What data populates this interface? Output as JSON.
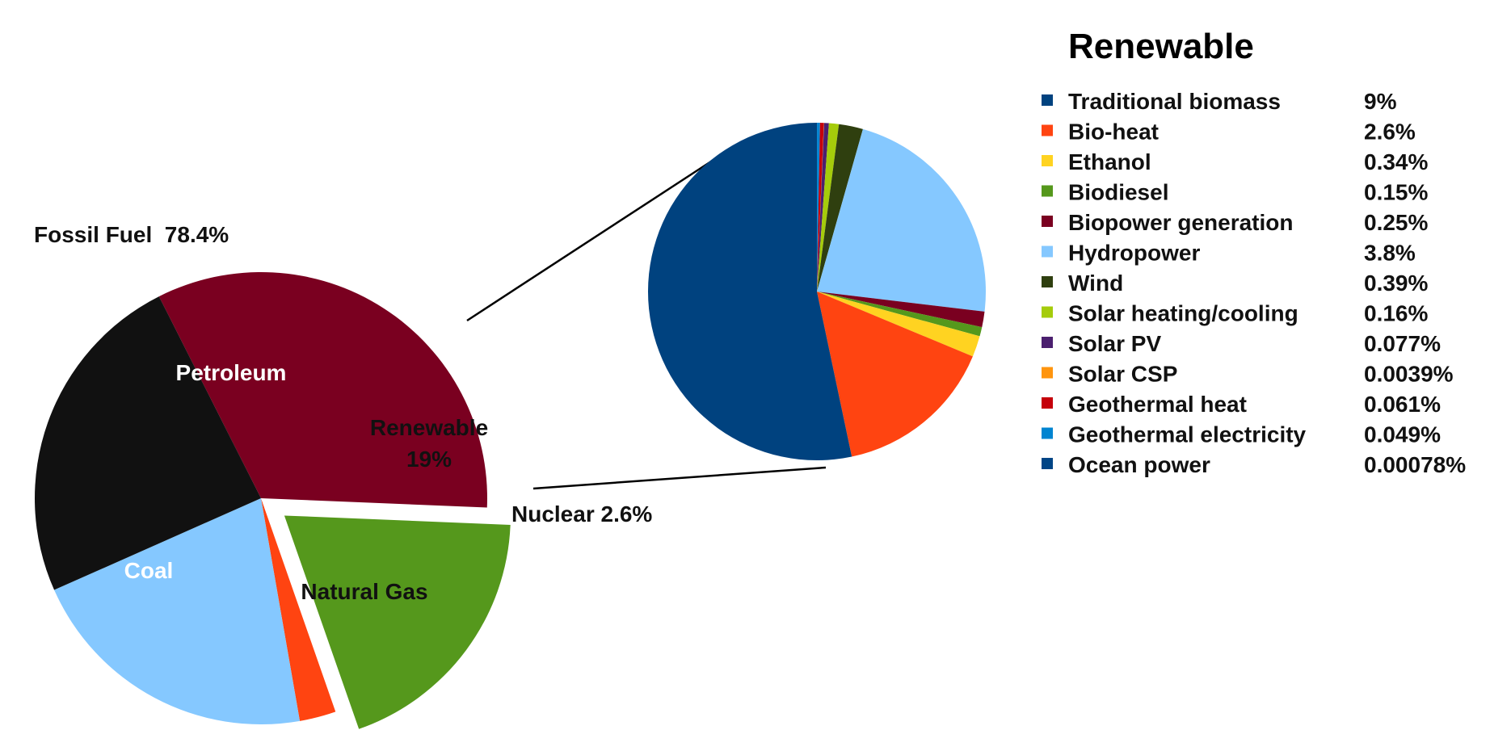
{
  "chart_data": [
    {
      "type": "pie",
      "title": "",
      "annotation": "Fossil Fuel  78.4%",
      "slices": [
        {
          "name": "Petroleum",
          "label": "Petroleum",
          "value": 33.1,
          "color": "#7a0020",
          "label_color": "#ffffff"
        },
        {
          "name": "Renewable",
          "label": "Renewable",
          "value_label": "19%",
          "value": 19,
          "color": "#55981c",
          "label_color": "#111111",
          "exploded": true
        },
        {
          "name": "Nuclear",
          "label": "Nuclear 2.6%",
          "value": 2.6,
          "color": "#ff4411",
          "label_color": "#111111"
        },
        {
          "name": "Natural Gas",
          "label": "Natural Gas",
          "value": 21.1,
          "color": "#85c8ff",
          "label_color": "#111111"
        },
        {
          "name": "Coal",
          "label": "Coal",
          "value": 24.2,
          "color": "#111111",
          "label_color": "#ffffff"
        }
      ]
    },
    {
      "type": "pie",
      "title": "Renewable",
      "legend_placement": "right",
      "slices": [
        {
          "name": "Traditional biomass",
          "label": "9%",
          "value": 9,
          "color": "#00427f"
        },
        {
          "name": "Bio-heat",
          "label": "2.6%",
          "value": 2.6,
          "color": "#ff4411"
        },
        {
          "name": "Ethanol",
          "label": "0.34%",
          "value": 0.34,
          "color": "#ffd321"
        },
        {
          "name": "Biodiesel",
          "label": "0.15%",
          "value": 0.15,
          "color": "#55981c"
        },
        {
          "name": "Biopower generation",
          "label": "0.25%",
          "value": 0.25,
          "color": "#7a0020"
        },
        {
          "name": "Hydropower",
          "label": "3.8%",
          "value": 3.8,
          "color": "#85c8ff"
        },
        {
          "name": "Wind",
          "label": "0.39%",
          "value": 0.39,
          "color": "#2f3f0f"
        },
        {
          "name": "Solar heating/cooling",
          "label": "0.16%",
          "value": 0.16,
          "color": "#a5cc0b"
        },
        {
          "name": "Solar PV",
          "label": "0.077%",
          "value": 0.077,
          "color": "#4b1f6f"
        },
        {
          "name": "Solar CSP",
          "label": "0.0039%",
          "value": 0.0039,
          "color": "#ff950e"
        },
        {
          "name": "Geothermal heat",
          "label": "0.061%",
          "value": 0.061,
          "color": "#c5000b"
        },
        {
          "name": "Geothermal electricity",
          "label": "0.049%",
          "value": 0.049,
          "color": "#0084d1"
        },
        {
          "name": "Ocean power",
          "label": "0.00078%",
          "value": 0.00078,
          "color": "#004586"
        }
      ]
    }
  ]
}
